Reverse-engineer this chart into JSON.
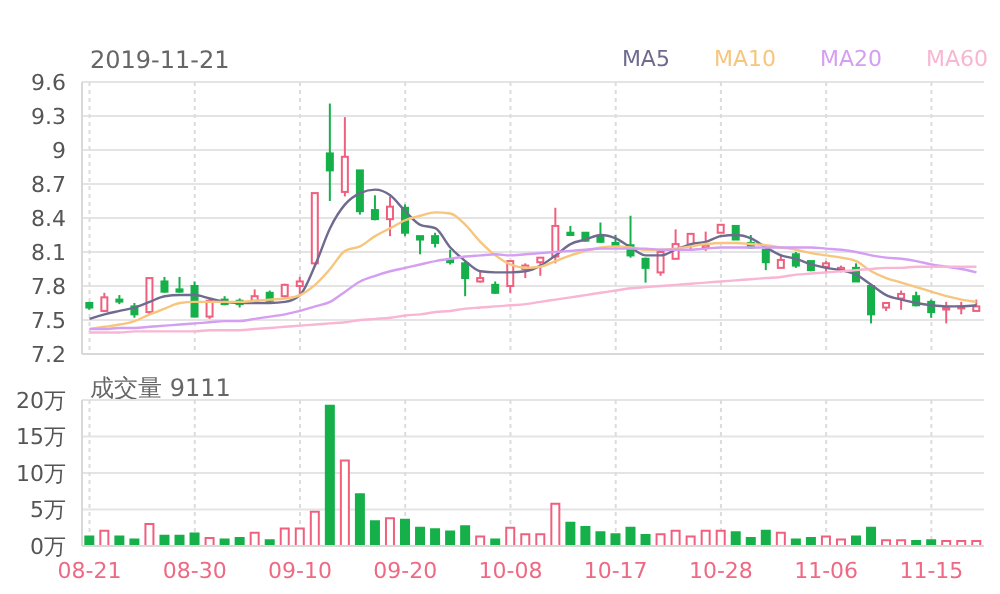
{
  "chart_data": [
    {
      "type": "candlestick",
      "title": "2019-11-21",
      "legend": "top right",
      "grid": true,
      "tick_labels": "y",
      "marker": "none",
      "categories": [
        null,
        null,
        null,
        null,
        null,
        null,
        null,
        null,
        null,
        null,
        null,
        null,
        null,
        null,
        null,
        null,
        null,
        null,
        null,
        null,
        null,
        null,
        null,
        null,
        null,
        null,
        null,
        null,
        null,
        null,
        null,
        null,
        null,
        null,
        null,
        null,
        null,
        null,
        null,
        null,
        null,
        null,
        null,
        null,
        null,
        null,
        null,
        null,
        null,
        null,
        null,
        null,
        null,
        null,
        null,
        null,
        null,
        null,
        null,
        null
      ],
      "ohlc": [
        [
          7.65,
          7.66,
          7.59,
          7.61
        ],
        [
          7.58,
          7.74,
          7.57,
          7.7
        ],
        [
          7.68,
          7.72,
          7.64,
          7.67
        ],
        [
          7.62,
          7.65,
          7.52,
          7.55
        ],
        [
          7.57,
          7.87,
          7.55,
          7.87
        ],
        [
          7.84,
          7.88,
          7.74,
          7.75
        ],
        [
          7.77,
          7.88,
          7.74,
          7.75
        ],
        [
          7.8,
          7.84,
          7.53,
          7.53
        ],
        [
          7.53,
          7.69,
          7.51,
          7.67
        ],
        [
          7.68,
          7.71,
          7.63,
          7.64
        ],
        [
          7.67,
          7.69,
          7.61,
          7.64
        ],
        [
          7.67,
          7.77,
          7.66,
          7.71
        ],
        [
          7.74,
          7.76,
          7.66,
          7.67
        ],
        [
          7.71,
          7.82,
          7.69,
          7.81
        ],
        [
          7.8,
          7.88,
          7.73,
          7.84
        ],
        [
          8.0,
          8.62,
          7.98,
          8.62
        ],
        [
          8.97,
          9.41,
          8.55,
          8.82
        ],
        [
          8.63,
          9.29,
          8.59,
          8.94
        ],
        [
          8.82,
          8.82,
          8.43,
          8.46
        ],
        [
          8.47,
          8.6,
          8.38,
          8.39
        ],
        [
          8.39,
          8.59,
          8.24,
          8.5
        ],
        [
          8.49,
          8.52,
          8.24,
          8.27
        ],
        [
          8.24,
          8.24,
          8.08,
          8.21
        ],
        [
          8.24,
          8.27,
          8.14,
          8.18
        ],
        [
          8.03,
          8.12,
          7.99,
          8.01
        ],
        [
          8.0,
          8.02,
          7.71,
          7.87
        ],
        [
          7.84,
          7.94,
          7.83,
          7.87
        ],
        [
          7.81,
          7.84,
          7.73,
          7.74
        ],
        [
          7.8,
          8.02,
          7.74,
          8.02
        ],
        [
          7.95,
          8.0,
          7.87,
          7.98
        ],
        [
          8.01,
          8.05,
          7.89,
          8.05
        ],
        [
          8.06,
          8.49,
          8.0,
          8.33
        ],
        [
          8.27,
          8.33,
          8.24,
          8.25
        ],
        [
          8.27,
          8.27,
          8.19,
          8.2
        ],
        [
          8.24,
          8.36,
          8.18,
          8.19
        ],
        [
          8.18,
          8.25,
          8.14,
          8.16
        ],
        [
          8.16,
          8.42,
          8.05,
          8.07
        ],
        [
          8.04,
          8.05,
          7.83,
          7.96
        ],
        [
          7.92,
          8.1,
          7.89,
          8.1
        ],
        [
          8.04,
          8.3,
          8.04,
          8.17
        ],
        [
          8.16,
          8.26,
          8.11,
          8.26
        ],
        [
          8.14,
          8.28,
          8.11,
          8.16
        ],
        [
          8.27,
          8.34,
          8.27,
          8.34
        ],
        [
          8.33,
          8.33,
          8.21,
          8.21
        ],
        [
          8.18,
          8.25,
          8.13,
          8.14
        ],
        [
          8.12,
          8.15,
          7.94,
          8.01
        ],
        [
          7.96,
          8.08,
          7.96,
          8.03
        ],
        [
          8.08,
          8.1,
          7.96,
          7.98
        ],
        [
          8.02,
          8.02,
          7.93,
          7.94
        ],
        [
          7.97,
          8.02,
          7.91,
          8.0
        ],
        [
          7.94,
          7.98,
          7.92,
          7.96
        ],
        [
          7.96,
          8.0,
          7.84,
          7.84
        ],
        [
          7.8,
          7.8,
          7.47,
          7.55
        ],
        [
          7.61,
          7.65,
          7.58,
          7.65
        ],
        [
          7.69,
          7.76,
          7.59,
          7.73
        ],
        [
          7.71,
          7.75,
          7.62,
          7.63
        ],
        [
          7.66,
          7.68,
          7.52,
          7.57
        ],
        [
          7.6,
          7.66,
          7.47,
          7.61
        ],
        [
          7.61,
          7.66,
          7.55,
          7.62
        ],
        [
          7.58,
          7.68,
          7.58,
          7.62
        ]
      ],
      "colors": [
        "#16b04a",
        "#f0607e",
        "#16b04a",
        "#16b04a",
        "#f0607e",
        "#16b04a",
        "#16b04a",
        "#16b04a",
        "#f0607e",
        "#16b04a",
        "#16b04a",
        "#f0607e",
        "#16b04a",
        "#f0607e",
        "#f0607e",
        "#f0607e",
        "#16b04a",
        "#f0607e",
        "#16b04a",
        "#16b04a",
        "#f0607e",
        "#16b04a",
        "#16b04a",
        "#16b04a",
        "#16b04a",
        "#16b04a",
        "#f0607e",
        "#16b04a",
        "#f0607e",
        "#f0607e",
        "#f0607e",
        "#f0607e",
        "#16b04a",
        "#16b04a",
        "#16b04a",
        "#16b04a",
        "#16b04a",
        "#16b04a",
        "#f0607e",
        "#f0607e",
        "#f0607e",
        "#f0607e",
        "#f0607e",
        "#16b04a",
        "#16b04a",
        "#16b04a",
        "#f0607e",
        "#16b04a",
        "#16b04a",
        "#f0607e",
        "#f0607e",
        "#16b04a",
        "#16b04a",
        "#f0607e",
        "#f0607e",
        "#16b04a",
        "#16b04a",
        "#f0607e",
        "#f0607e",
        "#f0607e"
      ],
      "series": [
        {
          "name": "MA5",
          "type": "line",
          "color": "#6f6b8f",
          "values": [
            7.51,
            7.55,
            7.58,
            7.61,
            7.66,
            7.71,
            7.72,
            7.72,
            7.69,
            7.66,
            7.65,
            7.65,
            7.65,
            7.66,
            7.72,
            7.98,
            8.31,
            8.52,
            8.62,
            8.65,
            8.6,
            8.46,
            8.34,
            8.31,
            8.14,
            8.02,
            7.93,
            7.92,
            7.92,
            7.93,
            7.98,
            8.07,
            8.17,
            8.21,
            8.25,
            8.22,
            8.14,
            8.07,
            8.07,
            8.12,
            8.17,
            8.19,
            8.24,
            8.25,
            8.22,
            8.14,
            8.07,
            8.04,
            7.99,
            7.96,
            7.94,
            7.9,
            7.81,
            7.72,
            7.68,
            7.65,
            7.63,
            7.62,
            7.62,
            7.63
          ]
        },
        {
          "name": "MA10",
          "type": "line",
          "color": "#f7c57c",
          "values": [
            7.42,
            7.44,
            7.46,
            7.49,
            7.55,
            7.6,
            7.65,
            7.66,
            7.66,
            7.66,
            7.66,
            7.67,
            7.68,
            7.69,
            7.72,
            7.81,
            7.95,
            8.11,
            8.15,
            8.24,
            8.31,
            8.38,
            8.42,
            8.45,
            8.44,
            8.34,
            8.19,
            8.07,
            7.99,
            7.96,
            7.97,
            8.02,
            8.07,
            8.11,
            8.14,
            8.15,
            8.14,
            8.12,
            8.12,
            8.13,
            8.15,
            8.17,
            8.18,
            8.18,
            8.17,
            8.16,
            8.14,
            8.12,
            8.09,
            8.07,
            8.05,
            8.02,
            7.93,
            7.87,
            7.83,
            7.79,
            7.75,
            7.71,
            7.68,
            7.66
          ]
        },
        {
          "name": "MA20",
          "type": "line",
          "color": "#d49ef2",
          "values": [
            7.42,
            7.42,
            7.43,
            7.43,
            7.44,
            7.45,
            7.46,
            7.47,
            7.48,
            7.49,
            7.49,
            7.51,
            7.53,
            7.55,
            7.58,
            7.62,
            7.66,
            7.75,
            7.84,
            7.89,
            7.93,
            7.96,
            7.99,
            8.02,
            8.04,
            8.06,
            8.07,
            8.08,
            8.07,
            8.08,
            8.09,
            8.1,
            8.11,
            8.12,
            8.13,
            8.13,
            8.13,
            8.13,
            8.12,
            8.12,
            8.12,
            8.13,
            8.14,
            8.14,
            8.14,
            8.14,
            8.14,
            8.14,
            8.14,
            8.13,
            8.12,
            8.1,
            8.07,
            8.05,
            8.04,
            8.02,
            7.99,
            7.97,
            7.95,
            7.92
          ]
        },
        {
          "name": "MA60",
          "type": "line",
          "color": "#f8b6d3",
          "values": [
            7.39,
            7.39,
            7.39,
            7.4,
            7.4,
            7.4,
            7.4,
            7.4,
            7.41,
            7.41,
            7.41,
            7.42,
            7.43,
            7.44,
            7.45,
            7.46,
            7.47,
            7.48,
            7.5,
            7.51,
            7.52,
            7.54,
            7.55,
            7.57,
            7.58,
            7.6,
            7.61,
            7.62,
            7.63,
            7.64,
            7.66,
            7.68,
            7.7,
            7.72,
            7.74,
            7.76,
            7.78,
            7.79,
            7.8,
            7.81,
            7.82,
            7.83,
            7.84,
            7.85,
            7.86,
            7.87,
            7.88,
            7.9,
            7.91,
            7.92,
            7.93,
            7.94,
            7.95,
            7.96,
            7.96,
            7.97,
            7.97,
            7.97,
            7.97,
            7.97
          ]
        }
      ],
      "ylim": [
        7.2,
        9.6
      ],
      "yticks": [
        7.2,
        7.5,
        7.8,
        8.1,
        8.4,
        8.7,
        9,
        9.3,
        9.6
      ]
    },
    {
      "type": "bar",
      "title": "成交量 9111",
      "grid": true,
      "categories": [
        "08-21",
        null,
        null,
        null,
        null,
        null,
        null,
        "08-30",
        null,
        null,
        null,
        null,
        null,
        null,
        "09-10",
        null,
        null,
        null,
        null,
        null,
        null,
        "09-20",
        null,
        null,
        null,
        null,
        null,
        null,
        "10-08",
        null,
        null,
        null,
        null,
        null,
        null,
        "10-17",
        null,
        null,
        null,
        null,
        null,
        null,
        "10-28",
        null,
        null,
        null,
        null,
        null,
        null,
        "11-06",
        null,
        null,
        null,
        null,
        null,
        null,
        "11-15",
        null,
        null,
        null
      ],
      "values": [
        1.3,
        2.1,
        1.3,
        0.9,
        3.0,
        1.4,
        1.4,
        1.7,
        1.1,
        0.9,
        1.1,
        1.8,
        0.8,
        2.4,
        2.4,
        4.7,
        19.2,
        11.7,
        7.1,
        3.4,
        3.8,
        3.6,
        2.5,
        2.3,
        2.0,
        2.7,
        1.3,
        0.9,
        2.5,
        1.6,
        1.6,
        5.8,
        3.2,
        2.6,
        1.9,
        1.6,
        2.5,
        1.5,
        1.6,
        2.1,
        1.3,
        2.1,
        2.1,
        1.9,
        1.1,
        2.1,
        1.8,
        0.9,
        1.1,
        1.3,
        0.9,
        1.3,
        2.5,
        0.8,
        0.8,
        0.7,
        0.8,
        0.7,
        0.7,
        0.7
      ],
      "colors": [
        "#16b04a",
        "#f0607e",
        "#16b04a",
        "#16b04a",
        "#f0607e",
        "#16b04a",
        "#16b04a",
        "#16b04a",
        "#f0607e",
        "#16b04a",
        "#16b04a",
        "#f0607e",
        "#16b04a",
        "#f0607e",
        "#f0607e",
        "#f0607e",
        "#16b04a",
        "#f0607e",
        "#16b04a",
        "#16b04a",
        "#f0607e",
        "#16b04a",
        "#16b04a",
        "#16b04a",
        "#16b04a",
        "#16b04a",
        "#f0607e",
        "#16b04a",
        "#f0607e",
        "#f0607e",
        "#f0607e",
        "#f0607e",
        "#16b04a",
        "#16b04a",
        "#16b04a",
        "#16b04a",
        "#16b04a",
        "#16b04a",
        "#f0607e",
        "#f0607e",
        "#f0607e",
        "#f0607e",
        "#f0607e",
        "#16b04a",
        "#16b04a",
        "#16b04a",
        "#f0607e",
        "#16b04a",
        "#16b04a",
        "#f0607e",
        "#f0607e",
        "#16b04a",
        "#16b04a",
        "#f0607e",
        "#f0607e",
        "#16b04a",
        "#16b04a",
        "#f0607e",
        "#f0607e",
        "#f0607e"
      ],
      "ylim": [
        0,
        20
      ],
      "yticks": [
        {
          "value": 0,
          "label": "0万"
        },
        {
          "value": 5,
          "label": "5万"
        },
        {
          "value": 10,
          "label": "10万"
        },
        {
          "value": 15,
          "label": "15万"
        },
        {
          "value": 20,
          "label": "20万"
        }
      ]
    }
  ]
}
